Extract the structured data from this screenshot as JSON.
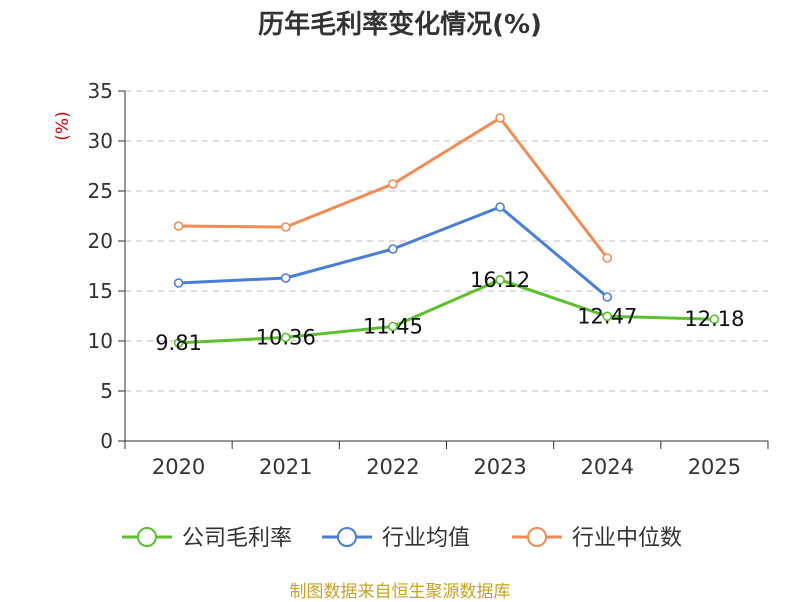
{
  "chart_data": {
    "type": "line",
    "title": "历年毛利率变化情况(%)",
    "ylabel": "(%)",
    "xlabel": "",
    "categories": [
      "2020",
      "2021",
      "2022",
      "2023",
      "2024",
      "2025"
    ],
    "ylim": [
      0,
      35
    ],
    "yticks": [
      0,
      5,
      10,
      15,
      20,
      25,
      30,
      35
    ],
    "grid": true,
    "legend_position": "bottom",
    "series": [
      {
        "name": "公司毛利率",
        "color": "#5cc02e",
        "values": [
          9.81,
          10.36,
          11.45,
          16.12,
          12.47,
          12.18
        ],
        "labels": [
          "9.81",
          "10.36",
          "11.45",
          "16.12",
          "12.47",
          "12.18"
        ]
      },
      {
        "name": "行业均值",
        "color": "#4a7fd6",
        "values": [
          15.8,
          16.3,
          19.2,
          23.4,
          14.4,
          null
        ]
      },
      {
        "name": "行业中位数",
        "color": "#f28c55",
        "values": [
          21.5,
          21.4,
          25.7,
          32.3,
          18.3,
          null
        ]
      }
    ]
  },
  "colors": {
    "ylabel": "#cc0000",
    "source": "#c9a227",
    "grid": "#cccccc",
    "axis": "#333333"
  },
  "footer": {
    "source": "制图数据来自恒生聚源数据库"
  }
}
